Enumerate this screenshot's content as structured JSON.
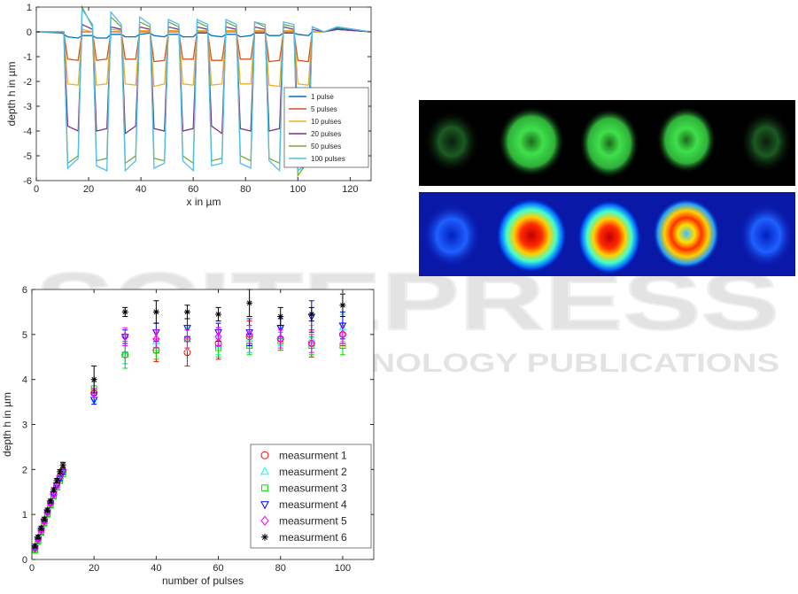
{
  "chart_data": [
    {
      "type": "line",
      "xlabel": "x in µm",
      "ylabel": "depth h in µm",
      "xlim": [
        0,
        128
      ],
      "ylim": [
        -6,
        1
      ],
      "xticks": [
        0,
        20,
        40,
        60,
        80,
        100,
        120
      ],
      "yticks": [
        -6,
        -5,
        -4,
        -3,
        -2,
        -1,
        0,
        1
      ],
      "legend": "lower right",
      "x": [
        0,
        10,
        10.5,
        12,
        16,
        17.5,
        21.5,
        23,
        27,
        28.5,
        32.5,
        34,
        38,
        39.5,
        43.5,
        45,
        49,
        50.5,
        54.5,
        56,
        60,
        61.5,
        65.5,
        67,
        71,
        72.5,
        76.5,
        78,
        82,
        83.5,
        87.5,
        89,
        93,
        94.5,
        98.5,
        100,
        104,
        105.5,
        110,
        115,
        128
      ],
      "series": [
        {
          "name": "1 pulse",
          "color": "#0072bd",
          "values": [
            0,
            -0.05,
            -0.1,
            -0.2,
            -0.25,
            -0.15,
            -0.15,
            -0.25,
            -0.25,
            -0.1,
            -0.1,
            -0.2,
            -0.2,
            -0.1,
            -0.05,
            -0.15,
            -0.2,
            -0.1,
            -0.1,
            -0.2,
            -0.2,
            -0.05,
            -0.05,
            -0.15,
            -0.2,
            -0.1,
            -0.1,
            -0.2,
            -0.15,
            -0.05,
            -0.05,
            -0.15,
            -0.15,
            -0.05,
            -0.05,
            -0.1,
            -0.15,
            0,
            0,
            0.15,
            0
          ]
        },
        {
          "name": "5 pulses",
          "color": "#d95319",
          "values": [
            0,
            0,
            0,
            -1.1,
            -1.15,
            0,
            0,
            -1.15,
            -1.1,
            0,
            0,
            -1.1,
            -1.1,
            0,
            0,
            -1.2,
            -1.15,
            0,
            0,
            -1.1,
            -1.1,
            0,
            0,
            -1.15,
            -1.15,
            0,
            0,
            -1.1,
            -1.1,
            0,
            0,
            -1.2,
            -1.15,
            0,
            0,
            -1.15,
            -1.2,
            0,
            0,
            0.1,
            0
          ]
        },
        {
          "name": "10 pulses",
          "color": "#edb120",
          "values": [
            0,
            0,
            0,
            -2.1,
            -2.15,
            0.1,
            0,
            -2.15,
            -2.1,
            0.1,
            0.05,
            -2.1,
            -2.15,
            0.05,
            0.05,
            -2.2,
            -2.1,
            0.05,
            0.05,
            -2.1,
            -2.15,
            0.05,
            0.05,
            -2.15,
            -2.1,
            0.05,
            0.05,
            -2.1,
            -2.1,
            0.05,
            0.05,
            -2.15,
            -2.2,
            0.05,
            0.05,
            -2.1,
            -2.15,
            0,
            0,
            0.1,
            0
          ]
        },
        {
          "name": "20 pulses",
          "color": "#7e2f8e",
          "values": [
            0,
            0,
            0,
            -3.8,
            -4.0,
            0.3,
            0.1,
            -4.0,
            -3.9,
            0.2,
            0.1,
            -4.1,
            -3.8,
            0.2,
            0.1,
            -3.9,
            -4.0,
            0.2,
            0.1,
            -4.0,
            -3.9,
            0.2,
            0.1,
            -3.8,
            -4.1,
            0.2,
            0.1,
            -3.9,
            -4.0,
            0.2,
            0.1,
            -4.0,
            -3.9,
            0.2,
            0.1,
            -3.9,
            -3.8,
            0.1,
            0,
            0.1,
            0
          ]
        },
        {
          "name": "50 pulses",
          "color": "#77ac30",
          "values": [
            0,
            0,
            0,
            -5.3,
            -5.0,
            1.0,
            0.2,
            -5.2,
            -5.1,
            0.6,
            0.2,
            -5.3,
            -5.0,
            0.4,
            0.2,
            -5.1,
            -5.2,
            0.4,
            0.2,
            -5.0,
            -5.3,
            0.4,
            0.2,
            -5.2,
            -5.1,
            0.4,
            0.2,
            -5.0,
            -5.2,
            0.4,
            0.2,
            -5.1,
            -5.3,
            0.3,
            0.2,
            -5.8,
            -5.2,
            0.2,
            0,
            0.2,
            0
          ]
        },
        {
          "name": "100 pulses",
          "color": "#4dbeee",
          "values": [
            0,
            0,
            0,
            -5.5,
            -5.1,
            0.9,
            0.3,
            -5.4,
            -5.6,
            0.8,
            0.3,
            -5.6,
            -5.2,
            0.6,
            0.3,
            -5.5,
            -5.3,
            0.5,
            0.3,
            -5.2,
            -5.6,
            0.5,
            0.3,
            -5.4,
            -5.3,
            0.5,
            0.3,
            -5.3,
            -5.5,
            0.4,
            0.3,
            -5.2,
            -5.6,
            0.4,
            0.3,
            -5.6,
            -5.3,
            0.2,
            0,
            0.2,
            0
          ]
        }
      ]
    },
    {
      "type": "scatter",
      "xlabel": "number of pulses",
      "ylabel": "depth h in µm",
      "xlim": [
        0,
        110
      ],
      "ylim": [
        0,
        6
      ],
      "xticks": [
        0,
        20,
        40,
        60,
        80,
        100
      ],
      "yticks": [
        0,
        1,
        2,
        3,
        4,
        5,
        6
      ],
      "legend": "lower right",
      "x": [
        1,
        2,
        3,
        4,
        5,
        6,
        7,
        8,
        9,
        10,
        20,
        30,
        40,
        50,
        60,
        70,
        80,
        90,
        100
      ],
      "series": [
        {
          "name": "measurment 1",
          "color": "#ff0000",
          "marker": "circle",
          "values": [
            0.25,
            0.45,
            0.65,
            0.85,
            1.05,
            1.25,
            1.45,
            1.65,
            1.8,
            1.95,
            3.7,
            4.55,
            4.65,
            4.6,
            4.8,
            4.95,
            4.9,
            4.8,
            5.0
          ],
          "errors": [
            0.04,
            0.04,
            0.04,
            0.04,
            0.04,
            0.04,
            0.04,
            0.05,
            0.05,
            0.06,
            0.1,
            0.2,
            0.25,
            0.3,
            0.35,
            0.35,
            0.25,
            0.3,
            0.25
          ]
        },
        {
          "name": "measurment 2",
          "color": "#00ffff",
          "marker": "triangle",
          "values": [
            0.25,
            0.45,
            0.65,
            0.85,
            1.05,
            1.25,
            1.45,
            1.6,
            1.8,
            1.95,
            3.6,
            4.55,
            4.85,
            4.9,
            4.75,
            4.9,
            4.95,
            4.9,
            5.15
          ],
          "errors": [
            0.04,
            0.04,
            0.04,
            0.04,
            0.04,
            0.04,
            0.04,
            0.05,
            0.05,
            0.06,
            0.1,
            0.2,
            0.2,
            0.25,
            0.2,
            0.3,
            0.2,
            0.3,
            0.3
          ]
        },
        {
          "name": "measurment 3",
          "color": "#00dd00",
          "marker": "square",
          "values": [
            0.2,
            0.4,
            0.6,
            0.8,
            1.0,
            1.2,
            1.4,
            1.6,
            1.75,
            1.9,
            3.8,
            4.55,
            4.65,
            4.9,
            4.7,
            4.75,
            4.85,
            4.75,
            4.75
          ],
          "errors": [
            0.04,
            0.04,
            0.04,
            0.04,
            0.04,
            0.04,
            0.04,
            0.05,
            0.05,
            0.06,
            0.15,
            0.3,
            0.2,
            0.2,
            0.2,
            0.2,
            0.2,
            0.2,
            0.2
          ]
        },
        {
          "name": "measurment 4",
          "color": "#0000ff",
          "marker": "triangle-down",
          "values": [
            0.25,
            0.45,
            0.65,
            0.85,
            1.05,
            1.25,
            1.45,
            1.65,
            1.8,
            1.95,
            3.55,
            4.95,
            5.05,
            5.15,
            5.05,
            5.05,
            5.15,
            5.4,
            5.2
          ],
          "errors": [
            0.04,
            0.04,
            0.04,
            0.04,
            0.04,
            0.04,
            0.04,
            0.05,
            0.05,
            0.06,
            0.1,
            0.15,
            0.2,
            0.2,
            0.2,
            0.3,
            0.2,
            0.35,
            0.3
          ]
        },
        {
          "name": "measurment 5",
          "color": "#ff00ff",
          "marker": "diamond",
          "values": [
            0.25,
            0.45,
            0.65,
            0.85,
            1.05,
            1.25,
            1.45,
            1.65,
            1.85,
            2.0,
            3.7,
            4.95,
            4.9,
            4.9,
            4.95,
            5.0,
            4.9,
            4.8,
            5.0
          ],
          "errors": [
            0.04,
            0.04,
            0.04,
            0.04,
            0.04,
            0.04,
            0.04,
            0.05,
            0.05,
            0.06,
            0.1,
            0.2,
            0.2,
            0.2,
            0.2,
            0.2,
            0.2,
            0.2,
            0.2
          ]
        },
        {
          "name": "measurment 6",
          "color": "#000000",
          "marker": "star",
          "values": [
            0.3,
            0.5,
            0.7,
            0.9,
            1.1,
            1.3,
            1.55,
            1.75,
            1.95,
            2.1,
            4.0,
            5.5,
            5.5,
            5.5,
            5.45,
            5.7,
            5.4,
            5.45,
            5.65
          ],
          "errors": [
            0.04,
            0.04,
            0.04,
            0.04,
            0.04,
            0.04,
            0.04,
            0.05,
            0.05,
            0.06,
            0.3,
            0.1,
            0.25,
            0.15,
            0.15,
            0.3,
            0.2,
            0.15,
            0.25
          ]
        }
      ]
    }
  ],
  "watermark": {
    "brand": "SCITEPRESS",
    "tagline": "SCIENCE AND TECHNOLOGY PUBLICATIONS"
  }
}
